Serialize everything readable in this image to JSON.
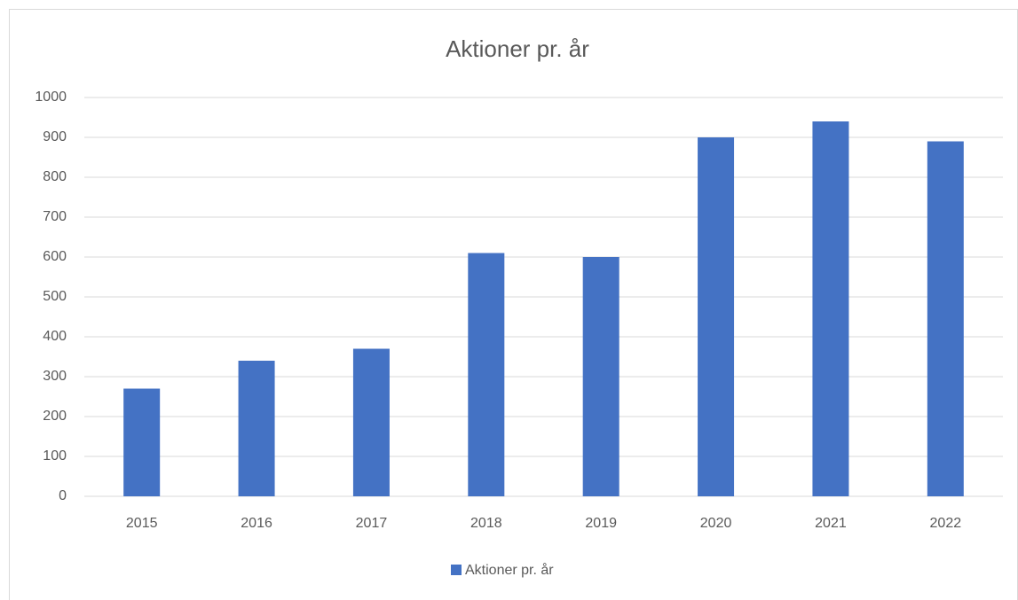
{
  "chart_data": {
    "type": "bar",
    "title": "Aktioner pr. år",
    "categories": [
      "2015",
      "2016",
      "2017",
      "2018",
      "2019",
      "2020",
      "2021",
      "2022"
    ],
    "series": [
      {
        "name": "Aktioner pr. år",
        "color": "#4472c4",
        "values": [
          270,
          340,
          370,
          610,
          600,
          900,
          940,
          890
        ]
      }
    ],
    "ylim": [
      0,
      1000
    ],
    "yticks": [
      0,
      100,
      200,
      300,
      400,
      500,
      600,
      700,
      800,
      900,
      1000
    ],
    "grid": true,
    "legend": "bottom"
  }
}
